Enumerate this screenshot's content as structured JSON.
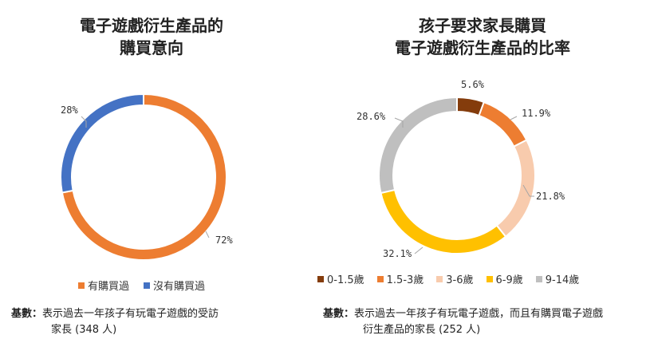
{
  "chart_data": [
    {
      "type": "pie",
      "title_lines": [
        "電子遊戲衍生產品的",
        "購買意向"
      ],
      "categories": [
        "有購買過",
        "沒有購買過"
      ],
      "values": [
        72,
        28
      ],
      "labels": [
        "72%",
        "28%"
      ],
      "colors": [
        "#ED7D31",
        "#4472C4"
      ],
      "legend": "bottom",
      "note_label": "基數：",
      "note_line1": "表示過去一年孩子有玩電子遊戲的受訪",
      "note_line2": "家長 (348 人)"
    },
    {
      "type": "pie",
      "title_lines": [
        "孩子要求家長購買",
        "電子遊戲衍生產品的比率"
      ],
      "categories": [
        "0-1.5歲",
        "1.5-3歲",
        "3-6歲",
        "6-9歲",
        "9-14歲"
      ],
      "values": [
        5.6,
        11.9,
        21.8,
        32.1,
        28.6
      ],
      "labels": [
        "5.6%",
        "11.9%",
        "21.8%",
        "32.1%",
        "28.6%"
      ],
      "colors": [
        "#843C0C",
        "#ED7D31",
        "#F8CBAD",
        "#FFC000",
        "#BFBFBF"
      ],
      "legend": "bottom",
      "note_label": "基數：",
      "note_line1": "表示過去一年孩子有玩電子遊戲，而且有購買電子遊戲",
      "note_line2": "衍生產品的家長 (252 人)"
    }
  ]
}
